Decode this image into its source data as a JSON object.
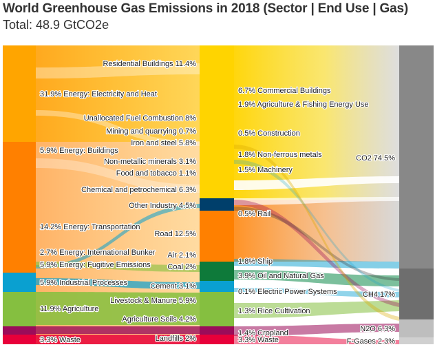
{
  "title": "World Greenhouse Gas Emissions in 2018 (Sector | End Use | Gas)",
  "subtitle": "Total: 48.9 GtCO2e",
  "colors": {
    "electricity": "#FFA500",
    "buildings": "#FF8000",
    "transport": "#FF8000",
    "industrial_processes": "#0AA0D0",
    "agriculture": "#85BF40",
    "waste": "#E8003A",
    "cropland_land": "#9B0C5A",
    "co2": "#888888",
    "ch4": "#6E6E6E",
    "n2o": "#BEBEBE",
    "fgases": "#D0D0D0"
  },
  "chart_data": {
    "type": "sankey",
    "title": "World Greenhouse Gas Emissions in 2018 (Sector | End Use | Gas)",
    "subtitle": "Total: 48.9 GtCO2e",
    "unit": "%",
    "sectors": [
      {
        "label": "31.9% Energy: Electricity and Heat",
        "value": 31.9,
        "color": "#FFA500"
      },
      {
        "label": "5.9% Energy: Buildings",
        "value": 5.9,
        "color": "#FF8000"
      },
      {
        "label": "14.2% Energy: Transportation",
        "value": 14.2,
        "color": "#FF8000"
      },
      {
        "label": "2.7% Energy: International Bunker",
        "value": 2.7,
        "color": "#FF8000"
      },
      {
        "label": "5.9% Energy: Fugitive Emissions",
        "value": 5.9,
        "color": "#FF8000"
      },
      {
        "label": "5.9% Industrial Processes",
        "value": 5.9,
        "color": "#0AA0D0"
      },
      {
        "label": "11.9% Agriculture",
        "value": 11.9,
        "color": "#85BF40"
      },
      {
        "label": "3.3% Waste",
        "value": 3.3,
        "color": "#E8003A"
      }
    ],
    "end_uses_left": [
      {
        "label": "Residential Buildings 11.4%",
        "value": 11.4
      },
      {
        "label": "Unallocated Fuel Combustion 8%",
        "value": 8.0
      },
      {
        "label": "Mining and quarrying 0.7%",
        "value": 0.7
      },
      {
        "label": "Iron and steel 5.8%",
        "value": 5.8
      },
      {
        "label": "Non-metallic minerals 3.1%",
        "value": 3.1
      },
      {
        "label": "Food and tobacco 1.1%",
        "value": 1.1
      },
      {
        "label": "Chemical and petrochemical 6.3%",
        "value": 6.3
      },
      {
        "label": "Other Industry 4.5%",
        "value": 4.5
      },
      {
        "label": "Road 12.5%",
        "value": 12.5
      },
      {
        "label": "Air 2.1%",
        "value": 2.1
      },
      {
        "label": "Coal 2%",
        "value": 2.0
      },
      {
        "label": "Cement 3.1%",
        "value": 3.1
      },
      {
        "label": "Livestock & Manure 5.9%",
        "value": 5.9
      },
      {
        "label": "Agriculture Soils 4.2%",
        "value": 4.2
      },
      {
        "label": "Landfills 2%",
        "value": 2.0
      }
    ],
    "end_uses_right": [
      {
        "label": "6.7% Commercial Buildings",
        "value": 6.7
      },
      {
        "label": "1.9% Agriculture & Fishing Energy Use",
        "value": 1.9
      },
      {
        "label": "0.5% Construction",
        "value": 0.5
      },
      {
        "label": "1.8% Non-ferrous metals",
        "value": 1.8
      },
      {
        "label": "1.5% Machinery",
        "value": 1.5
      },
      {
        "label": "0.5% Rail",
        "value": 0.5
      },
      {
        "label": "1.8% Ship",
        "value": 1.8
      },
      {
        "label": "3.9% Oil and Natural Gas",
        "value": 3.9
      },
      {
        "label": "0.1% Electric Power Systems",
        "value": 0.1
      },
      {
        "label": "1.3% Rice Cultivation",
        "value": 1.3
      },
      {
        "label": "1.4% Cropland",
        "value": 1.4
      },
      {
        "label": "3.3% Waste",
        "value": 3.3
      }
    ],
    "gases": [
      {
        "label": "CO2 74.5%",
        "value": 74.5,
        "color": "#888888"
      },
      {
        "label": "CH4 17%",
        "value": 17.0,
        "color": "#6E6E6E"
      },
      {
        "label": "N2O 6.3%",
        "value": 6.3,
        "color": "#BEBEBE"
      },
      {
        "label": "F-Gases 2.3%",
        "value": 2.3,
        "color": "#D0D0D0"
      }
    ]
  }
}
